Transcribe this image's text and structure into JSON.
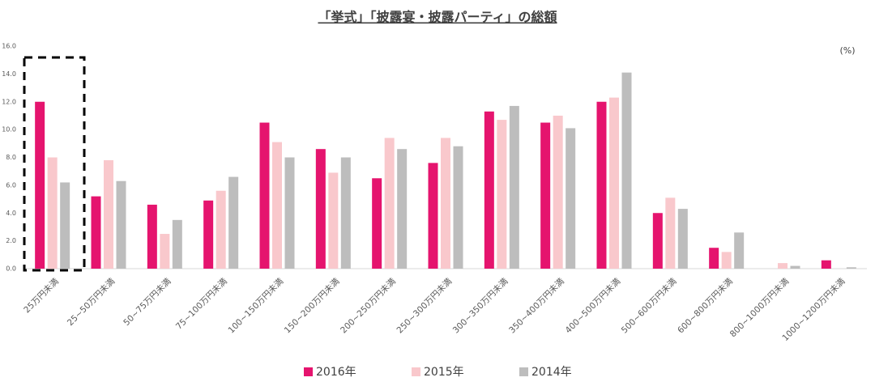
{
  "chart_data": {
    "type": "bar",
    "title": "「挙式」「披露宴・披露パーティ」の総額",
    "unit_label": "(%)",
    "categories": [
      "25万円未満",
      "25~50万円未満",
      "50~75万円未満",
      "75~100万円未満",
      "100~150万円未満",
      "150~200万円未満",
      "200~250万円未満",
      "250~300万円未満",
      "300~350万円未満",
      "350~400万円未満",
      "400~500万円未満",
      "500~600万円未満",
      "600~800万円未満",
      "800~1000万円未満",
      "1000~1200万円未満"
    ],
    "series": [
      {
        "name": "2016年",
        "color": "#e5146e",
        "values": [
          12.0,
          5.2,
          4.6,
          4.9,
          10.5,
          8.6,
          6.5,
          7.6,
          11.3,
          10.5,
          12.0,
          4.0,
          1.5,
          0,
          0.6
        ]
      },
      {
        "name": "2015年",
        "color": "#f9c8cc",
        "values": [
          8.0,
          7.8,
          2.5,
          5.6,
          9.1,
          6.9,
          9.4,
          9.4,
          10.7,
          11.0,
          12.3,
          5.1,
          1.2,
          0.4,
          0
        ]
      },
      {
        "name": "2014年",
        "color": "#bdbdbd",
        "values": [
          6.2,
          6.3,
          3.5,
          6.6,
          8.0,
          8.0,
          8.6,
          8.8,
          11.7,
          10.1,
          14.1,
          4.3,
          2.6,
          0.2,
          0.1
        ]
      }
    ],
    "ylim": [
      0,
      16
    ],
    "yticks": [
      {
        "value": 0,
        "label": "0.0"
      },
      {
        "value": 2,
        "label": "2.0"
      },
      {
        "value": 4,
        "label": "4.0"
      },
      {
        "value": 6,
        "label": "6.0"
      },
      {
        "value": 8,
        "label": "8.0"
      },
      {
        "value": 10,
        "label": "10.0"
      },
      {
        "value": 12,
        "label": "12.0"
      },
      {
        "value": 14,
        "label": "14.0"
      },
      {
        "value": 16,
        "label": "16.0"
      }
    ],
    "grid": false
  }
}
